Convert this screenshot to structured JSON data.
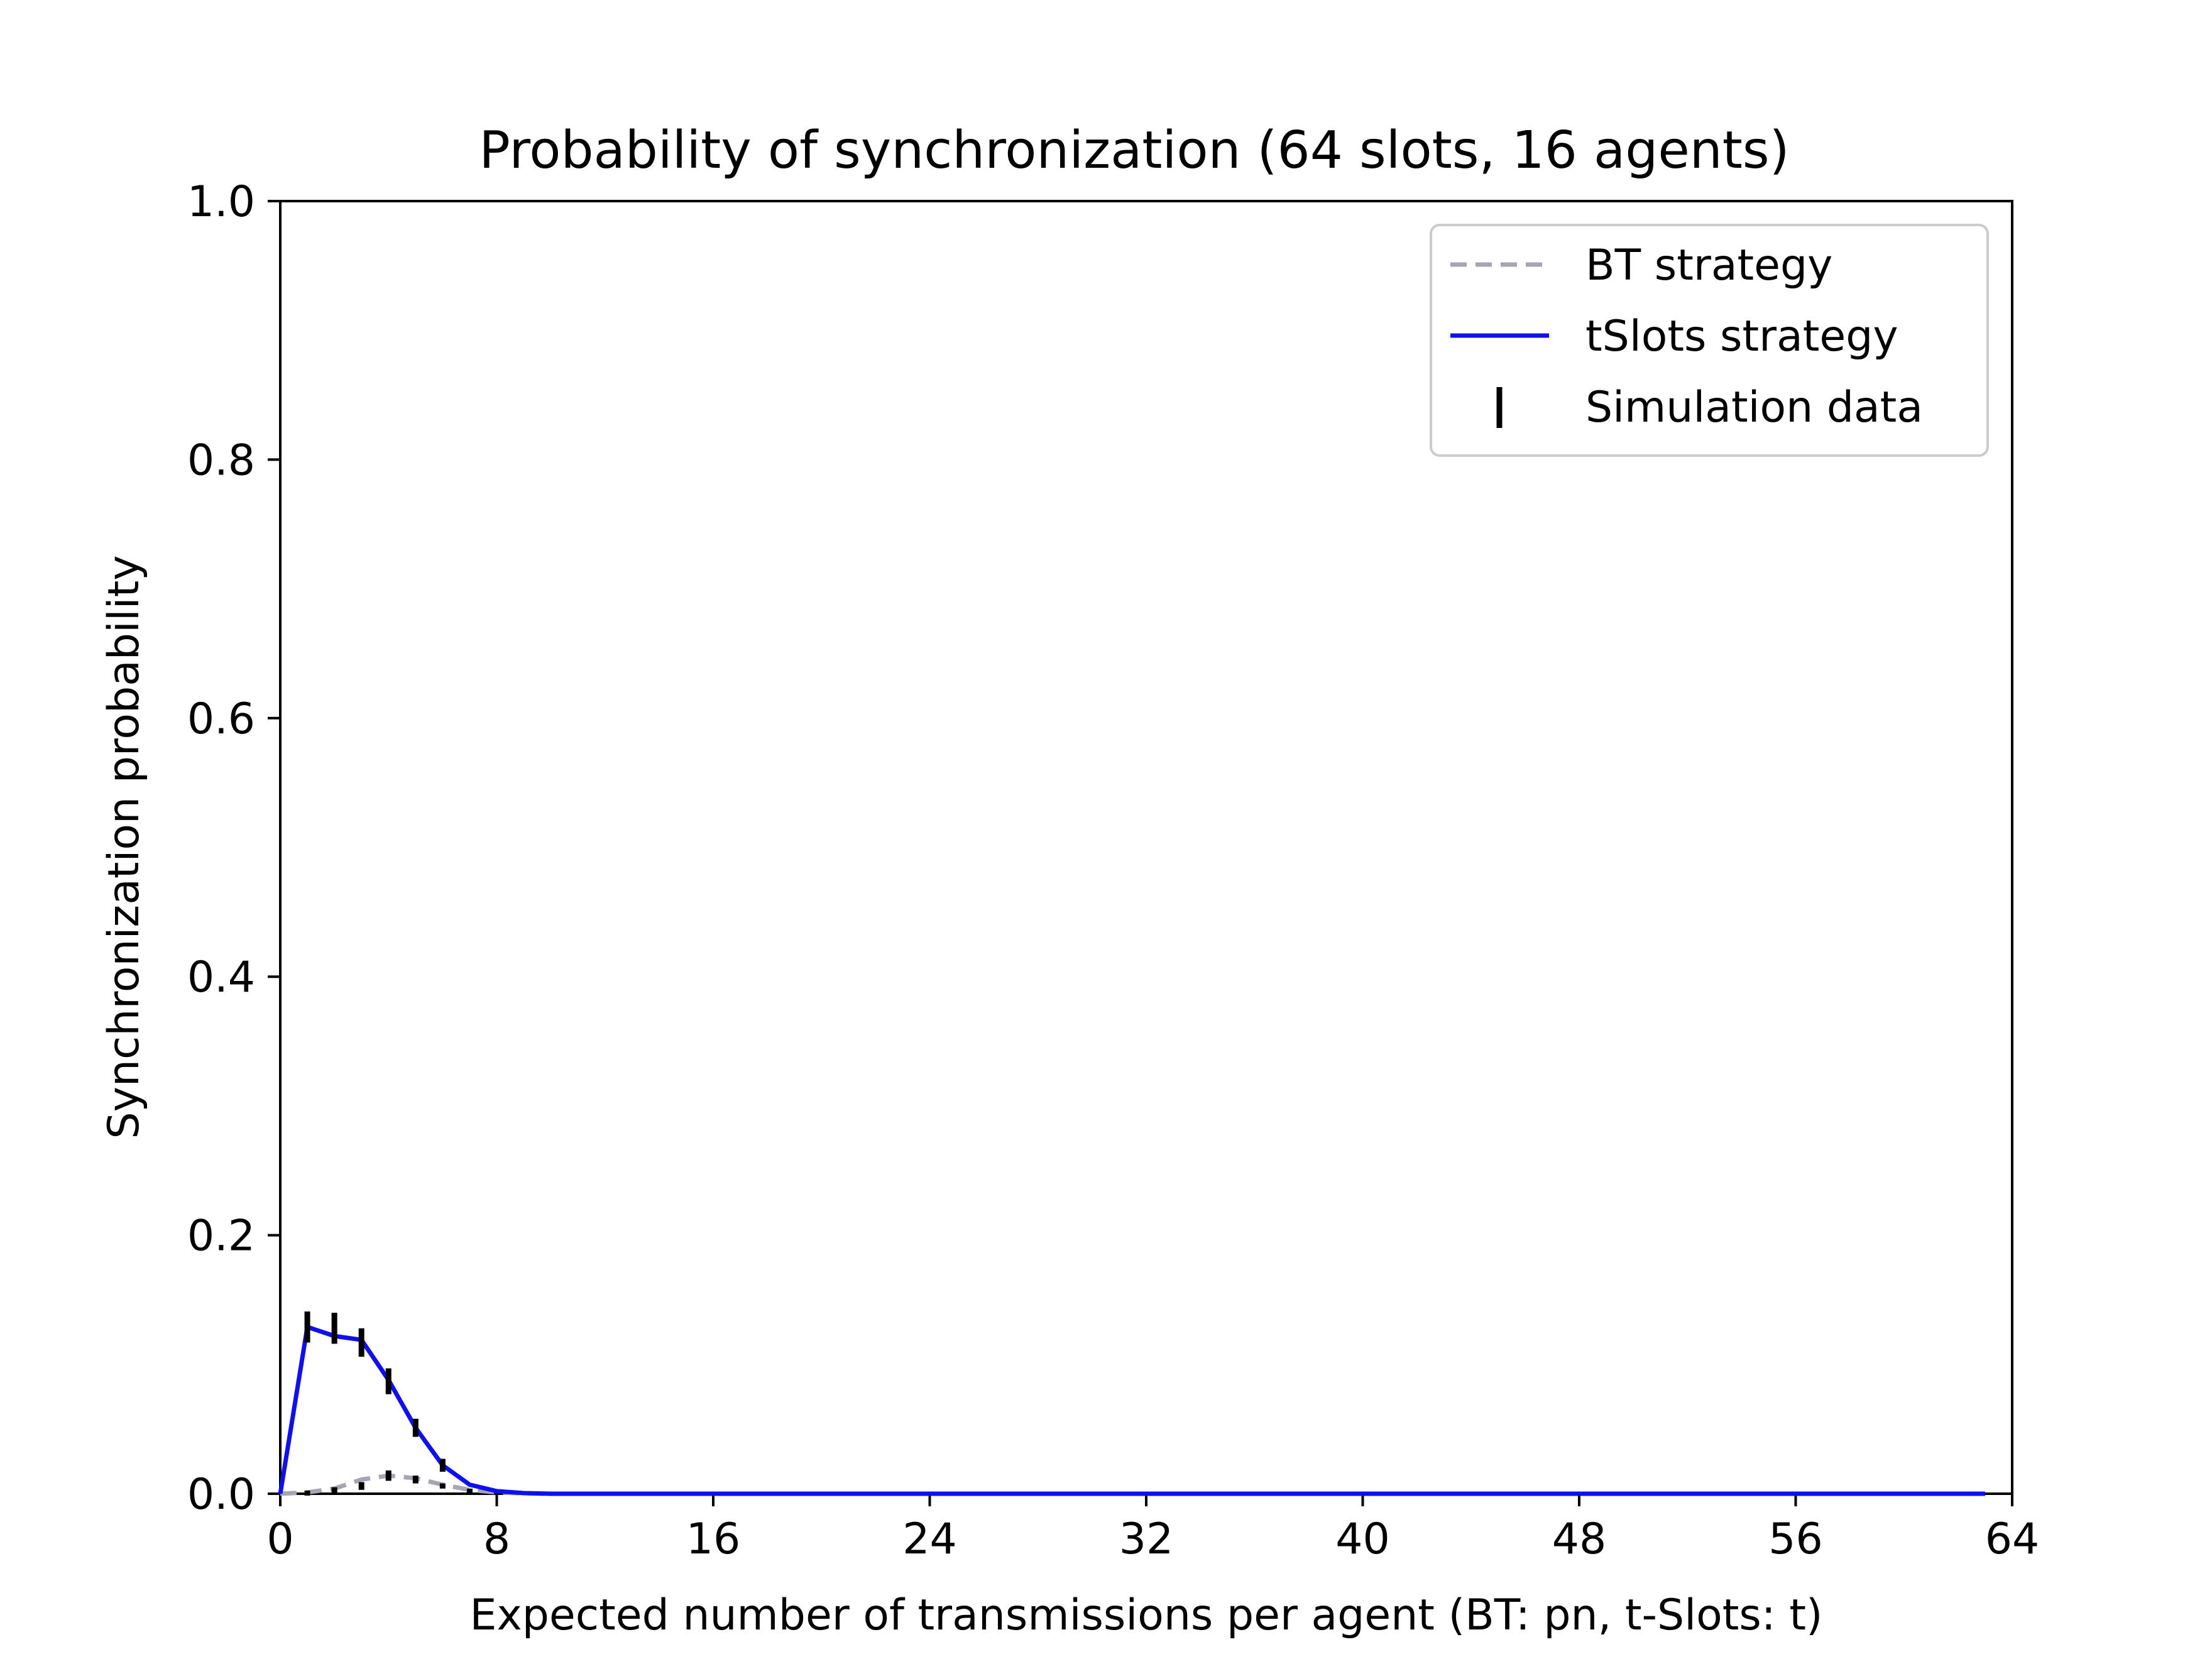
{
  "chart_data": {
    "type": "line",
    "title": "Probability of synchronization (64 slots, 16 agents)",
    "xlabel": "Expected number of transmissions per agent (BT: pn, t-Slots: t)",
    "ylabel": "Synchronization probability",
    "xlim": [
      0,
      64
    ],
    "ylim": [
      0,
      1.0
    ],
    "xticks": [
      "0",
      "8",
      "16",
      "24",
      "32",
      "40",
      "48",
      "56",
      "64"
    ],
    "yticks": [
      "0.0",
      "0.2",
      "0.4",
      "0.6",
      "0.8",
      "1.0"
    ],
    "grid": false,
    "legend_position": "top-right",
    "series": [
      {
        "name": "BT strategy",
        "color": "#a5a5b5",
        "style": "dashed",
        "x": [
          0,
          1,
          2,
          3,
          4,
          5,
          6,
          7,
          8,
          9,
          10,
          12,
          16,
          24,
          32,
          40,
          48,
          56,
          63
        ],
        "y": [
          0,
          0.001,
          0.004,
          0.011,
          0.014,
          0.012,
          0.007,
          0.003,
          0.001,
          0.0003,
          0,
          0,
          0,
          0,
          0,
          0,
          0,
          0,
          0
        ]
      },
      {
        "name": "tSlots strategy",
        "color": "#1010ee",
        "style": "solid",
        "x": [
          0,
          1,
          2,
          3,
          4,
          5,
          6,
          7,
          8,
          9,
          10,
          12,
          16,
          24,
          32,
          40,
          48,
          56,
          63
        ],
        "y": [
          0,
          0.129,
          0.122,
          0.119,
          0.088,
          0.051,
          0.022,
          0.007,
          0.002,
          0.0005,
          0,
          0,
          0,
          0,
          0,
          0,
          0,
          0,
          0
        ]
      }
    ],
    "simulation": {
      "name": "Simulation data",
      "color": "#000000",
      "tslots": [
        {
          "x": 1,
          "y": 0.129,
          "err": 0.012
        },
        {
          "x": 2,
          "y": 0.128,
          "err": 0.012
        },
        {
          "x": 3,
          "y": 0.117,
          "err": 0.011
        },
        {
          "x": 4,
          "y": 0.087,
          "err": 0.01
        },
        {
          "x": 5,
          "y": 0.051,
          "err": 0.007
        },
        {
          "x": 6,
          "y": 0.022,
          "err": 0.005
        }
      ],
      "bt": [
        {
          "x": 1,
          "y": 0.0005,
          "err": 0.001
        },
        {
          "x": 2,
          "y": 0.003,
          "err": 0.002
        },
        {
          "x": 3,
          "y": 0.006,
          "err": 0.003
        },
        {
          "x": 4,
          "y": 0.014,
          "err": 0.004
        },
        {
          "x": 5,
          "y": 0.011,
          "err": 0.003
        },
        {
          "x": 6,
          "y": 0.006,
          "err": 0.002
        },
        {
          "x": 7,
          "y": 0.002,
          "err": 0.001
        }
      ]
    }
  }
}
